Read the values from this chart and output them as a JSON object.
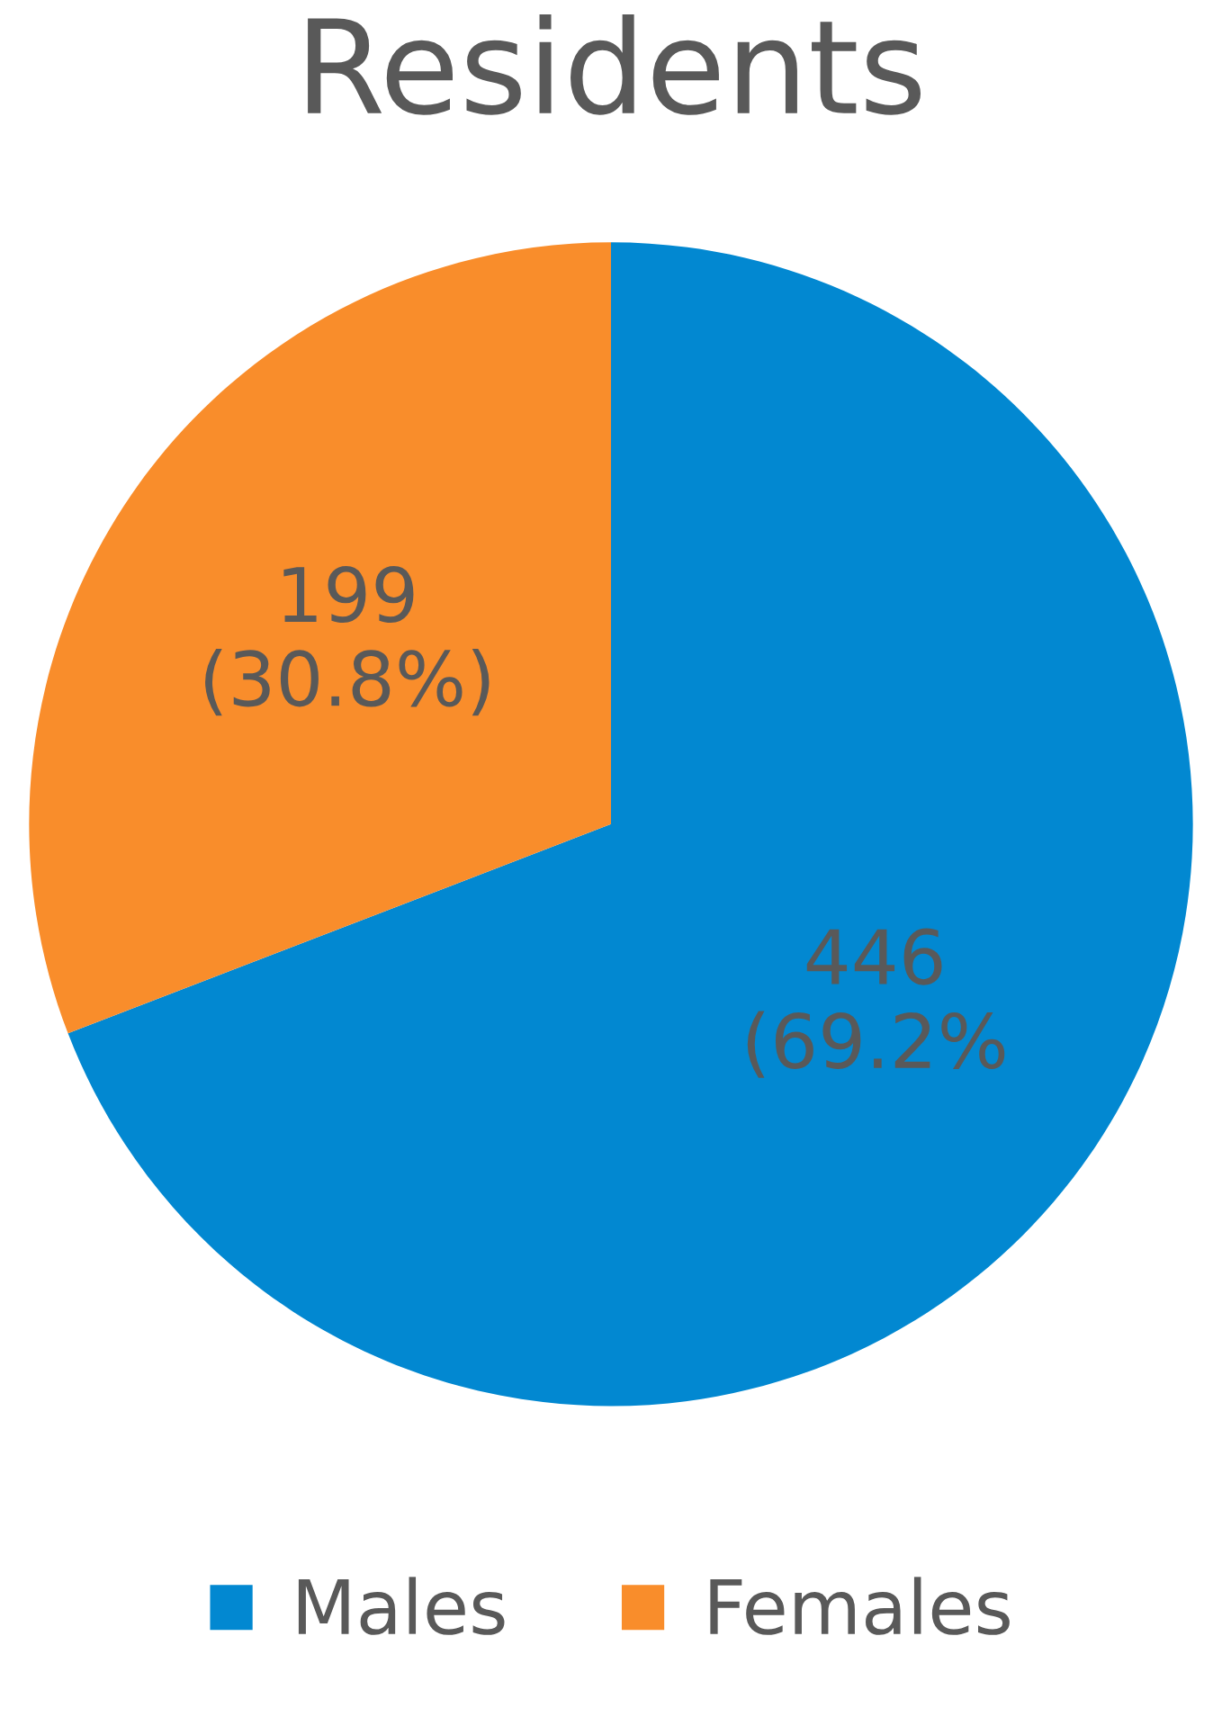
{
  "chart_data": {
    "type": "pie",
    "title": "Residents",
    "categories": [
      "Males",
      "Females"
    ],
    "values": [
      446,
      199
    ],
    "colors": [
      "#0288d1",
      "#f98d2b"
    ],
    "value_labels": [
      "446\n(69.2%",
      "199\n(30.8%)"
    ],
    "legend": "bottom"
  }
}
